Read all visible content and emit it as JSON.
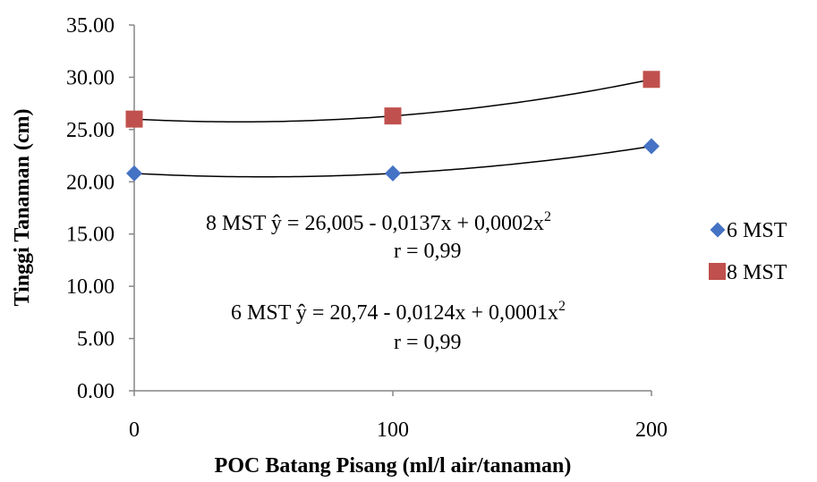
{
  "chart_data": {
    "type": "scatter",
    "xlabel": "POC Batang Pisang (ml/l air/tanaman)",
    "ylabel": "Tinggi Tanaman (cm)",
    "xlim": [
      0,
      200
    ],
    "ylim": [
      0,
      35
    ],
    "x_ticks": [
      "0",
      "100",
      "200"
    ],
    "y_ticks": [
      "0.00",
      "5.00",
      "10.00",
      "15.00",
      "20.00",
      "25.00",
      "30.00",
      "35.00"
    ],
    "grid": false,
    "legend_position": "right",
    "series": [
      {
        "name": "6 MST",
        "marker": "diamond",
        "color": "#4472C4",
        "x": [
          0,
          100,
          200
        ],
        "y": [
          20.8,
          20.8,
          23.4
        ],
        "trendline": {
          "type": "polynomial",
          "coefficients": [
            20.74,
            -0.0124,
            0.0001
          ]
        }
      },
      {
        "name": "8 MST",
        "marker": "square",
        "color": "#C0504D",
        "x": [
          0,
          100,
          200
        ],
        "y": [
          26.0,
          26.3,
          29.8
        ],
        "trendline": {
          "type": "polynomial",
          "coefficients": [
            26.005,
            -0.0137,
            0.0002
          ]
        }
      }
    ],
    "annotations": [
      {
        "eq_prefix": "8 MST ŷ =  26,005 - 0,0137x + 0,0002x",
        "eq_sup": "2",
        "r": "r = 0,99"
      },
      {
        "eq_prefix": "6 MST ŷ =  20,74 - 0,0124x + 0,0001x",
        "eq_sup": "2",
        "r": "r = 0,99"
      }
    ]
  }
}
